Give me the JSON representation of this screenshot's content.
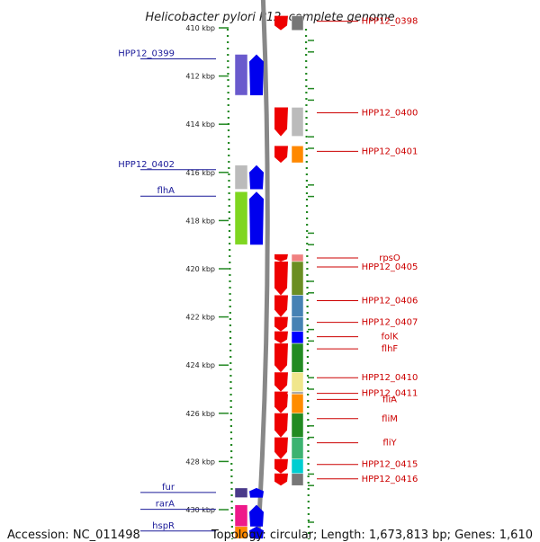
{
  "title": "Helicobacter pylori P12, complete genome",
  "footer": {
    "accession": "Accession: NC_011498",
    "topology": "Topology: circular; Length: 1,673,813 bp; Genes: 1,610"
  },
  "axis": {
    "range_kbp": [
      409.5,
      430.7
    ],
    "tick_labels": [
      {
        "kbp": 410,
        "label": "410 kbp"
      },
      {
        "kbp": 412,
        "label": "412 kbp"
      },
      {
        "kbp": 414,
        "label": "414 kbp"
      },
      {
        "kbp": 416,
        "label": "416 kbp"
      },
      {
        "kbp": 418,
        "label": "418 kbp"
      },
      {
        "kbp": 420,
        "label": "420 kbp"
      },
      {
        "kbp": 422,
        "label": "422 kbp"
      },
      {
        "kbp": 424,
        "label": "424 kbp"
      },
      {
        "kbp": 426,
        "label": "426 kbp"
      },
      {
        "kbp": 428,
        "label": "428 kbp"
      },
      {
        "kbp": 430,
        "label": "430 kbp"
      }
    ]
  },
  "colors": {
    "forward_strand": "#0000ee",
    "reverse_strand": "#ee0000",
    "left_label": "#1a1a99",
    "right_label": "#cc0000",
    "dotted_ruler": "#228822",
    "backbone": "#888888"
  },
  "genes_left": [
    {
      "name": "HPP12_0399",
      "start": 411.1,
      "end": 412.8,
      "color": "#6a5acd"
    },
    {
      "name": "HPP12_0402",
      "start": 415.7,
      "end": 416.7,
      "color": "#bbbbbb"
    },
    {
      "name": "flhA",
      "start": 416.8,
      "end": 419.0,
      "color": "#7fd620"
    },
    {
      "name": "fur",
      "start": 429.1,
      "end": 429.5,
      "color": "#4a3a8a"
    },
    {
      "name": "rarA",
      "start": 429.8,
      "end": 430.7,
      "color": "#ee1a8a"
    },
    {
      "name": "hspR",
      "start": 430.7,
      "end": 431.2,
      "color": "#ff8800"
    }
  ],
  "genes_right": [
    {
      "name": "HPP12_0398",
      "start": 409.5,
      "end": 410.1,
      "color": "#777777"
    },
    {
      "name": "HPP12_0400",
      "start": 413.3,
      "end": 414.5,
      "color": "#bbbbbb"
    },
    {
      "name": "HPP12_0401",
      "start": 414.9,
      "end": 415.6,
      "color": "#ff8800"
    },
    {
      "name": "rpsO",
      "start": 419.4,
      "end": 419.7,
      "color": "#f08080"
    },
    {
      "name": "HPP12_0405",
      "start": 419.7,
      "end": 421.1,
      "color": "#6b8e23"
    },
    {
      "name": "HPP12_0406",
      "start": 421.1,
      "end": 422.0,
      "color": "#4682b4"
    },
    {
      "name": "HPP12_0407",
      "start": 422.0,
      "end": 422.6,
      "color": "#4682b4"
    },
    {
      "name": "folK",
      "start": 422.6,
      "end": 423.1,
      "color": "#0000ff"
    },
    {
      "name": "flhF",
      "start": 423.1,
      "end": 424.3,
      "color": "#228b22"
    },
    {
      "name": "HPP12_0410",
      "start": 424.3,
      "end": 425.1,
      "color": "#f0e68c"
    },
    {
      "name": "HPP12_0411",
      "start": 425.1,
      "end": 425.2,
      "color": "#aaaaaa"
    },
    {
      "name": "fliA",
      "start": 425.2,
      "end": 426.0,
      "color": "#ff8c00"
    },
    {
      "name": "fliM",
      "start": 426.0,
      "end": 427.0,
      "color": "#228b22"
    },
    {
      "name": "fliY",
      "start": 427.0,
      "end": 427.9,
      "color": "#3cb371"
    },
    {
      "name": "HPP12_0415",
      "start": 427.9,
      "end": 428.5,
      "color": "#00ced1"
    },
    {
      "name": "HPP12_0416",
      "start": 428.5,
      "end": 429.0,
      "color": "#777777"
    }
  ]
}
